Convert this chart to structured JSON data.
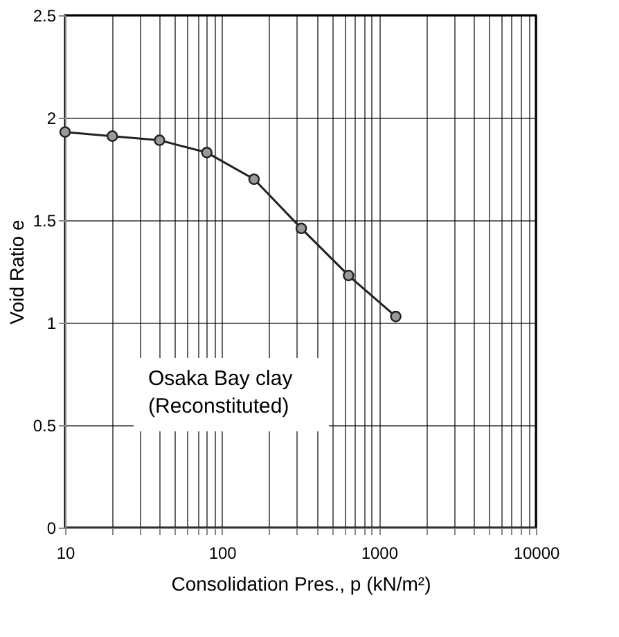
{
  "chart_data": {
    "type": "line",
    "xlabel": "Consolidation Pres., p  (kN/m²)",
    "ylabel": "Void Ratio  e",
    "x": [
      10,
      20,
      40,
      80,
      160,
      320,
      640,
      1280
    ],
    "series": [
      {
        "color": "#222222",
        "values": [
          1.93,
          1.91,
          1.89,
          1.83,
          1.7,
          1.46,
          1.23,
          1.03
        ]
      }
    ],
    "xlim": [
      10,
      10000
    ],
    "ylim": [
      0,
      2.5
    ],
    "log": "x",
    "xticks": [
      10,
      {
        "value": 20,
        "label": null
      },
      {
        "value": 30,
        "label": null
      },
      {
        "value": 40,
        "label": null
      },
      {
        "value": 50,
        "label": null
      },
      {
        "value": 60,
        "label": null
      },
      {
        "value": 70,
        "label": null
      },
      {
        "value": 80,
        "label": null
      },
      {
        "value": 90,
        "label": null
      },
      100,
      {
        "value": 200,
        "label": null
      },
      {
        "value": 300,
        "label": null
      },
      {
        "value": 400,
        "label": null
      },
      {
        "value": 500,
        "label": null
      },
      {
        "value": 600,
        "label": null
      },
      {
        "value": 700,
        "label": null
      },
      {
        "value": 800,
        "label": null
      },
      {
        "value": 900,
        "label": null
      },
      1000,
      {
        "value": 2000,
        "label": null
      },
      {
        "value": 3000,
        "label": null
      },
      {
        "value": 4000,
        "label": null
      },
      {
        "value": 5000,
        "label": null
      },
      {
        "value": 6000,
        "label": null
      },
      {
        "value": 7000,
        "label": null
      },
      {
        "value": 8000,
        "label": null
      },
      {
        "value": 9000,
        "label": null
      },
      10000
    ],
    "yticks": [
      {
        "value": 0,
        "label": "0"
      },
      0.5,
      {
        "value": 1,
        "label": "1"
      },
      1.5,
      {
        "value": 2,
        "label": "2"
      },
      2.5
    ],
    "grid": true,
    "marker": "circle",
    "line_style": "solid",
    "annotations": [
      "Osaka Bay clay\n(Reconstituted)"
    ]
  }
}
